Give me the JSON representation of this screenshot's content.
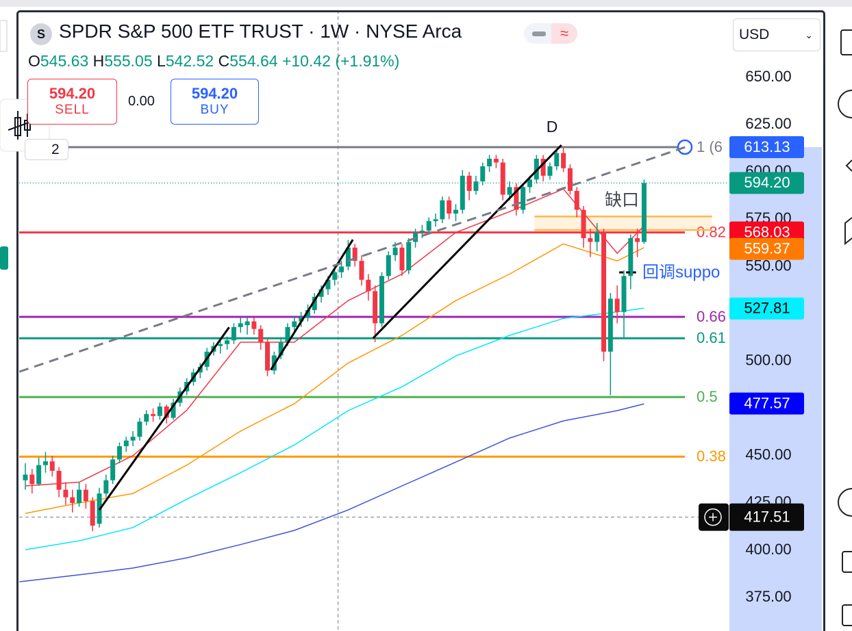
{
  "chart_data": {
    "type": "candlestick",
    "symbol_badge": "S",
    "title": "SPDR S&P 500 ETF TRUST · 1W · NYSE Arca",
    "up_color": "#089981",
    "down_color": "#f23645",
    "ylim": [
      357.3,
      685.5
    ],
    "yticks": [
      {
        "value": 650,
        "label": "650.00"
      },
      {
        "value": 625,
        "label": "625.00"
      },
      {
        "value": 600,
        "label": "600.00"
      },
      {
        "value": 575,
        "label": "575.00"
      },
      {
        "value": 550,
        "label": "550.00"
      },
      {
        "value": 500,
        "label": "500.00"
      },
      {
        "value": 450,
        "label": "450.00"
      },
      {
        "value": 425,
        "label": "425.00"
      },
      {
        "value": 400,
        "label": "400.00"
      },
      {
        "value": 375,
        "label": "375.00"
      }
    ],
    "ohlc": [
      [
        437,
        446,
        432,
        440
      ],
      [
        440,
        443,
        430,
        435
      ],
      [
        435,
        449,
        434,
        445
      ],
      [
        445,
        452,
        441,
        447
      ],
      [
        447,
        450,
        439,
        442
      ],
      [
        442,
        444,
        428,
        432
      ],
      [
        432,
        436,
        424,
        428
      ],
      [
        428,
        432,
        420,
        425
      ],
      [
        425,
        436,
        423,
        432
      ],
      [
        432,
        435,
        422,
        426
      ],
      [
        426,
        428,
        410,
        413
      ],
      [
        414,
        433,
        412,
        430
      ],
      [
        430,
        440,
        428,
        437
      ],
      [
        437,
        450,
        435,
        448
      ],
      [
        448,
        457,
        446,
        455
      ],
      [
        455,
        460,
        452,
        458
      ],
      [
        458,
        463,
        455,
        460
      ],
      [
        460,
        470,
        458,
        468
      ],
      [
        468,
        474,
        466,
        472
      ],
      [
        472,
        475,
        468,
        471
      ],
      [
        471,
        478,
        469,
        476
      ],
      [
        476,
        477,
        467,
        470
      ],
      [
        470,
        480,
        469,
        478
      ],
      [
        478,
        486,
        476,
        484
      ],
      [
        484,
        491,
        482,
        489
      ],
      [
        489,
        496,
        487,
        494
      ],
      [
        494,
        499,
        491,
        497
      ],
      [
        497,
        507,
        495,
        505
      ],
      [
        505,
        510,
        503,
        508
      ],
      [
        508,
        512,
        504,
        509
      ],
      [
        509,
        513,
        506,
        511
      ],
      [
        511,
        520,
        509,
        518
      ],
      [
        518,
        523,
        515,
        520
      ],
      [
        519,
        523,
        514,
        521
      ],
      [
        521,
        523,
        514,
        517
      ],
      [
        517,
        519,
        506,
        510
      ],
      [
        510,
        512,
        492,
        495
      ],
      [
        495,
        505,
        493,
        503
      ],
      [
        503,
        512,
        501,
        510
      ],
      [
        510,
        520,
        508,
        518
      ],
      [
        518,
        524,
        515,
        521
      ],
      [
        521,
        526,
        518,
        523
      ],
      [
        523,
        530,
        521,
        527
      ],
      [
        527,
        536,
        525,
        534
      ],
      [
        534,
        540,
        531,
        538
      ],
      [
        538,
        545,
        535,
        543
      ],
      [
        543,
        549,
        540,
        547
      ],
      [
        547,
        553,
        544,
        550
      ],
      [
        550,
        564,
        548,
        560
      ],
      [
        560,
        562,
        550,
        553
      ],
      [
        553,
        556,
        540,
        543
      ],
      [
        543,
        546,
        532,
        537
      ],
      [
        537,
        540,
        510,
        520
      ],
      [
        520,
        547,
        518,
        545
      ],
      [
        545,
        558,
        543,
        556
      ],
      [
        556,
        563,
        553,
        560
      ],
      [
        560,
        562,
        545,
        548
      ],
      [
        548,
        565,
        546,
        563
      ],
      [
        563,
        570,
        560,
        568
      ],
      [
        568,
        572,
        565,
        569
      ],
      [
        569,
        576,
        567,
        574
      ],
      [
        574,
        578,
        571,
        575
      ],
      [
        575,
        587,
        573,
        585
      ],
      [
        585,
        587,
        575,
        578
      ],
      [
        578,
        583,
        574,
        580
      ],
      [
        580,
        601,
        578,
        598
      ],
      [
        598,
        600,
        585,
        590
      ],
      [
        590,
        598,
        588,
        595
      ],
      [
        595,
        605,
        593,
        603
      ],
      [
        603,
        609,
        600,
        607
      ],
      [
        607,
        609,
        602,
        605
      ],
      [
        605,
        607,
        585,
        588
      ],
      [
        588,
        595,
        585,
        592
      ],
      [
        592,
        594,
        577,
        580
      ],
      [
        580,
        594,
        578,
        592
      ],
      [
        592,
        598,
        589,
        596
      ],
      [
        596,
        609,
        594,
        607
      ],
      [
        607,
        609,
        595,
        598
      ],
      [
        598,
        605,
        596,
        603
      ],
      [
        603,
        612,
        601,
        610
      ],
      [
        610,
        613,
        600,
        602
      ],
      [
        602,
        604,
        588,
        590
      ],
      [
        590,
        592,
        576,
        580
      ],
      [
        580,
        582,
        560,
        565
      ],
      [
        565,
        570,
        555,
        563
      ],
      [
        563,
        573,
        558,
        568
      ],
      [
        568,
        570,
        500,
        505
      ],
      [
        505,
        536,
        482,
        533
      ],
      [
        533,
        540,
        520,
        526
      ],
      [
        526,
        548,
        512,
        545
      ],
      [
        545,
        567,
        538,
        565
      ],
      [
        565,
        570,
        555,
        563
      ],
      [
        563,
        596,
        562,
        594.2
      ]
    ],
    "moving_averages": [
      {
        "color": "#f23645",
        "x": [
          0,
          8,
          16,
          24,
          32,
          40,
          48,
          56,
          64,
          72,
          80,
          88,
          92
        ],
        "values": [
          434,
          436,
          450,
          474,
          510,
          510,
          532,
          546,
          568,
          579,
          591,
          557,
          571.5
        ]
      },
      {
        "color": "#ff9800",
        "x": [
          0,
          8,
          16,
          24,
          32,
          40,
          48,
          56,
          64,
          72,
          80,
          88,
          92
        ],
        "values": [
          419.5,
          425,
          430,
          445,
          463,
          477.5,
          499,
          513.6,
          532,
          546,
          562,
          553,
          560
        ]
      },
      {
        "color": "#00e5ff",
        "x": [
          0,
          8,
          16,
          24,
          32,
          40,
          48,
          56,
          64,
          72,
          80,
          88,
          92
        ],
        "values": [
          400.3,
          405,
          412,
          427,
          441,
          455.7,
          473.8,
          486.4,
          502.7,
          513.6,
          522.6,
          526,
          528
        ]
      },
      {
        "color": "#3f51d8",
        "x": [
          -0.9,
          8,
          16,
          24,
          32,
          40,
          48,
          56,
          64,
          72,
          80,
          88,
          92
        ],
        "values": [
          383.3,
          387,
          390.6,
          396,
          403,
          410.5,
          421.3,
          434,
          446.6,
          459.3,
          468.4,
          473.8,
          477.4
        ]
      }
    ],
    "fib_levels": [
      {
        "value": 613.13,
        "label": "1 (6",
        "color": "#787b86"
      },
      {
        "value": 568.03,
        "label": "0.82",
        "color": "#f23645"
      },
      {
        "value": 523.4,
        "label": "0.66",
        "color": "#9c27b0"
      },
      {
        "value": 512.1,
        "label": "0.61",
        "color": "#089981"
      },
      {
        "value": 481,
        "label": "0.5",
        "color": "#4caf50"
      },
      {
        "value": 449.5,
        "label": "0.38",
        "color": "#ff9800"
      }
    ],
    "trendlines": [
      {
        "color": "#000000",
        "dashed": false,
        "x": [
          11.0,
          30.3
        ],
        "values": [
          421.3,
          517.9
        ]
      },
      {
        "color": "#000000",
        "dashed": false,
        "x": [
          36.5,
          48.7
        ],
        "values": [
          495.4,
          564.2
        ]
      },
      {
        "color": "#000000",
        "dashed": false,
        "x": [
          51.7,
          79.7
        ],
        "values": [
          512.1,
          614.2
        ]
      },
      {
        "color": "#787b86",
        "dashed": true,
        "x": [
          -0.9,
          98.1
        ],
        "values": [
          494.4,
          613.1
        ]
      }
    ],
    "gap_zone": {
      "x": [
        75.7,
        102.1
      ],
      "values": [
        576.5,
        569.3
      ]
    },
    "support_line": {
      "x": [
        88.3,
        90.8
      ],
      "values": [
        546.9,
        546.9
      ]
    },
    "current_price": 594.2,
    "crosshair": {
      "x": 46.5,
      "value": 417.51
    },
    "annotations": {
      "top_label": "D",
      "gap": "缺口",
      "pullback": "回调suppo"
    },
    "price_badges": [
      {
        "value": 613.13,
        "label": "613.13",
        "color": "#2962ff",
        "text_color": "#ffffff"
      },
      {
        "value": 594.2,
        "label": "594.20",
        "color": "#089981",
        "text_color": "#ffffff"
      },
      {
        "value": 568.03,
        "label": "568.03",
        "color": "#f7081f",
        "text_color": "#ffffff"
      },
      {
        "value": 559.37,
        "label": "559.37",
        "color": "#ff7a00",
        "text_color": "#ffffff"
      },
      {
        "value": 527.81,
        "label": "527.81",
        "color": "#00f0ff",
        "text_color": "#000000"
      },
      {
        "value": 477.57,
        "label": "477.57",
        "color": "#0000ff",
        "text_color": "#ffffff"
      },
      {
        "value": 417.51,
        "label": "417.51",
        "color": "#0b0b0b",
        "text_color": "#ffffff"
      }
    ]
  },
  "legend": {
    "o": "O",
    "o_value": "545.63",
    "h": "H",
    "h_value": "555.05",
    "l": "L",
    "l_value": "542.52",
    "c": "C",
    "c_value": "554.64",
    "change": "+10.42 (+1.91%)"
  },
  "order_panel": {
    "sell_price": "594.20",
    "sell": "SELL",
    "spread": "0.00",
    "buy_price": "594.20",
    "buy": "BUY"
  },
  "currency": "USD",
  "drawings_count": "2"
}
